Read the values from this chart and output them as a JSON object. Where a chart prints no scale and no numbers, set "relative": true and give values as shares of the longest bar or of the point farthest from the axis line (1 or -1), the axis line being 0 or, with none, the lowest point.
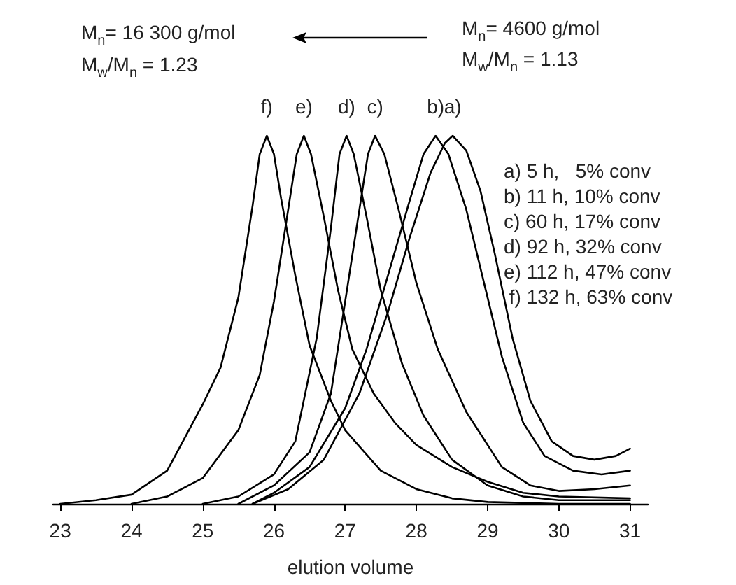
{
  "chart_data": {
    "type": "line",
    "relative": true,
    "xlabel": "elution volume",
    "xlim": [
      22.9,
      31.25
    ],
    "xticks": [
      23,
      24,
      25,
      26,
      27,
      28,
      29,
      30,
      31
    ],
    "grid": false,
    "legend": false,
    "marker": "none",
    "line_style": "solid",
    "annotations": [
      "M$_{n}$= 16 300 g/mol",
      "M$_{w}$/M$_{n}$ = 1.23",
      "M$_{n}$= 4600 g/mol",
      "M$_{w}$/M$_{n}$ = 1.13",
      "a) 5 h,   5% conv",
      "b) 11 h, 10% conv",
      "c) 60 h, 17% conv",
      "d) 92 h, 32% conv",
      "e) 112 h, 47% conv",
      " f) 132 h, 63% conv"
    ],
    "series": [
      {
        "name": "f)",
        "color": "#000000",
        "x": [
          23,
          23.5,
          24,
          24.5,
          25,
          25.25,
          25.5,
          25.7,
          25.8,
          25.9,
          26,
          26.1,
          26.3,
          26.5,
          26.8,
          27,
          27.5,
          28,
          28.5,
          29,
          30,
          31
        ],
        "values": [
          0,
          0.01,
          0.025,
          0.09,
          0.27,
          0.37,
          0.56,
          0.81,
          0.95,
          1,
          0.95,
          0.83,
          0.62,
          0.43,
          0.28,
          0.2,
          0.09,
          0.04,
          0.015,
          0.005,
          0,
          0
        ]
      },
      {
        "name": "e)",
        "color": "#000000",
        "x": [
          24,
          24.5,
          25,
          25.5,
          25.8,
          26,
          26.2,
          26.32,
          26.42,
          26.52,
          26.7,
          26.9,
          27.1,
          27.4,
          27.7,
          28,
          28.5,
          29,
          29.5,
          30,
          31
        ],
        "values": [
          0,
          0.02,
          0.07,
          0.2,
          0.35,
          0.55,
          0.8,
          0.95,
          1,
          0.95,
          0.78,
          0.58,
          0.42,
          0.3,
          0.22,
          0.16,
          0.1,
          0.06,
          0.03,
          0.02,
          0.015
        ]
      },
      {
        "name": "d)",
        "color": "#000000",
        "x": [
          25,
          25.5,
          26,
          26.3,
          26.6,
          26.8,
          26.92,
          27.02,
          27.12,
          27.3,
          27.5,
          27.8,
          28.1,
          28.5,
          29,
          29.5,
          30,
          31
        ],
        "values": [
          0,
          0.02,
          0.08,
          0.17,
          0.45,
          0.75,
          0.95,
          1,
          0.95,
          0.78,
          0.58,
          0.38,
          0.24,
          0.12,
          0.05,
          0.02,
          0.01,
          0.01
        ]
      },
      {
        "name": "c)",
        "color": "#000000",
        "x": [
          25.5,
          26,
          26.5,
          26.8,
          27,
          27.2,
          27.32,
          27.42,
          27.55,
          27.75,
          28,
          28.3,
          28.7,
          29.2,
          29.6,
          30,
          30.5,
          31
        ],
        "values": [
          0,
          0.05,
          0.14,
          0.3,
          0.55,
          0.8,
          0.95,
          1,
          0.95,
          0.8,
          0.6,
          0.42,
          0.25,
          0.1,
          0.05,
          0.035,
          0.04,
          0.05
        ]
      },
      {
        "name": "b)",
        "color": "#000000",
        "x": [
          25.7,
          26,
          26.5,
          27,
          27.3,
          27.6,
          27.9,
          28.1,
          28.27,
          28.45,
          28.7,
          28.95,
          29.2,
          29.5,
          29.8,
          30.2,
          30.6,
          31
        ],
        "values": [
          0,
          0.03,
          0.1,
          0.26,
          0.42,
          0.62,
          0.82,
          0.95,
          1,
          0.95,
          0.8,
          0.6,
          0.4,
          0.22,
          0.13,
          0.09,
          0.08,
          0.09
        ]
      },
      {
        "name": "a)",
        "color": "#000000",
        "x": [
          25.7,
          26.2,
          26.7,
          27.2,
          27.6,
          27.9,
          28.2,
          28.4,
          28.51,
          28.7,
          28.9,
          29.1,
          29.35,
          29.6,
          29.9,
          30.2,
          30.5,
          30.8,
          31
        ],
        "values": [
          0,
          0.04,
          0.12,
          0.3,
          0.52,
          0.72,
          0.9,
          0.98,
          1,
          0.96,
          0.85,
          0.68,
          0.45,
          0.28,
          0.17,
          0.13,
          0.12,
          0.13,
          0.15
        ]
      }
    ]
  }
}
